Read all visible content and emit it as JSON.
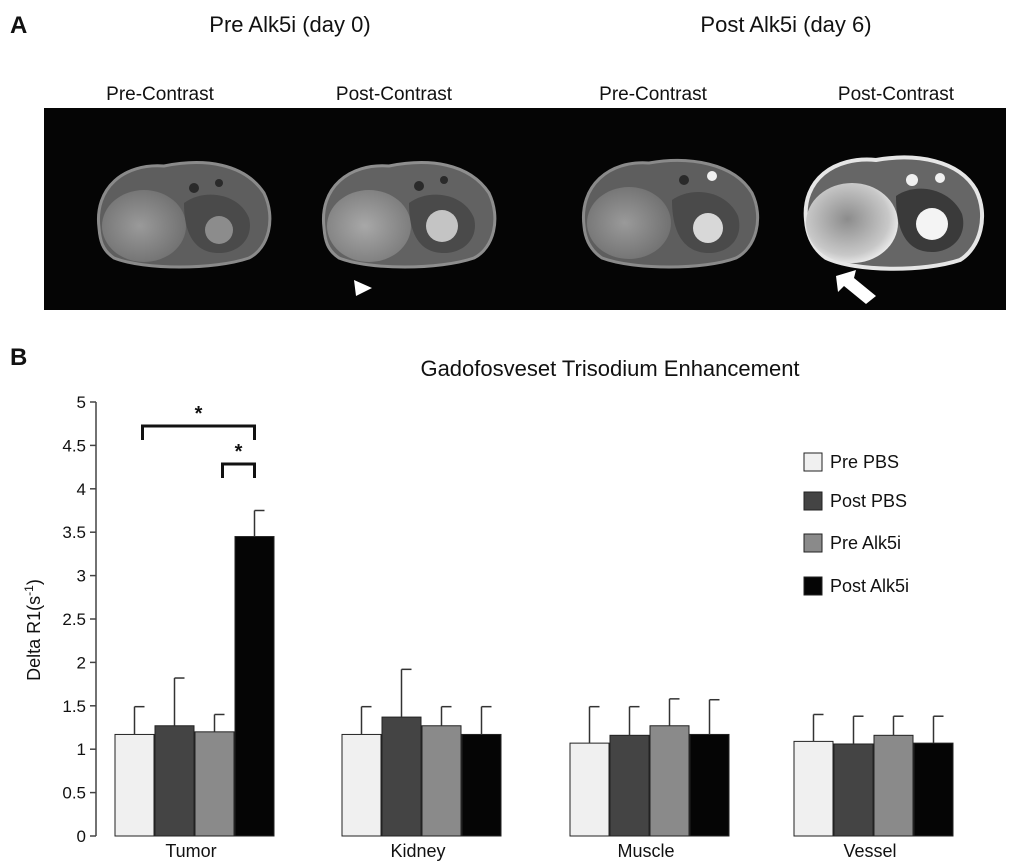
{
  "panel_a": {
    "letter": "A",
    "groups": [
      {
        "title": "Pre Alk5i (day 0)",
        "subtitles": [
          "Pre-Contrast",
          "Post-Contrast"
        ]
      },
      {
        "title": "Post Alk5i (day 6)",
        "subtitles": [
          "Pre-Contrast",
          "Post-Contrast"
        ]
      }
    ]
  },
  "panel_b": {
    "letter": "B"
  },
  "colors": {
    "pre_pbs": "#f0f0f0",
    "post_pbs": "#444444",
    "pre_alk5i": "#8a8a8a",
    "post_alk5i": "#050505"
  },
  "chart_data": {
    "type": "bar",
    "title": "Gadofosveset Trisodium Enhancement",
    "xlabel": "",
    "ylabel": "Delta R1(s",
    "ylabel_sup": "-1",
    "ylabel_close": ")",
    "ylim": [
      0,
      5
    ],
    "yticks": [
      "0",
      "0.5",
      "1",
      "1.5",
      "2",
      "2.5",
      "3",
      "3.5",
      "4",
      "4.5",
      "5"
    ],
    "categories": [
      "Tumor",
      "Kidney",
      "Muscle",
      "Vessel"
    ],
    "series": [
      {
        "name": "Pre PBS",
        "values": [
          1.17,
          1.17,
          1.07,
          1.09
        ],
        "errors": [
          0.32,
          0.32,
          0.42,
          0.31
        ]
      },
      {
        "name": "Post PBS",
        "values": [
          1.27,
          1.37,
          1.16,
          1.06
        ],
        "errors": [
          0.55,
          0.55,
          0.33,
          0.32
        ]
      },
      {
        "name": "Pre Alk5i",
        "values": [
          1.2,
          1.27,
          1.27,
          1.16
        ],
        "errors": [
          0.2,
          0.22,
          0.31,
          0.22
        ]
      },
      {
        "name": "Post Alk5i",
        "values": [
          3.45,
          1.17,
          1.17,
          1.07
        ],
        "errors": [
          0.3,
          0.32,
          0.4,
          0.31
        ]
      }
    ],
    "significance": [
      {
        "category": "Tumor",
        "from_series": 0,
        "to_series": 3,
        "label": "*"
      },
      {
        "category": "Tumor",
        "from_series": 2,
        "to_series": 3,
        "label": "*"
      }
    ],
    "legend": "right",
    "grid": false
  }
}
